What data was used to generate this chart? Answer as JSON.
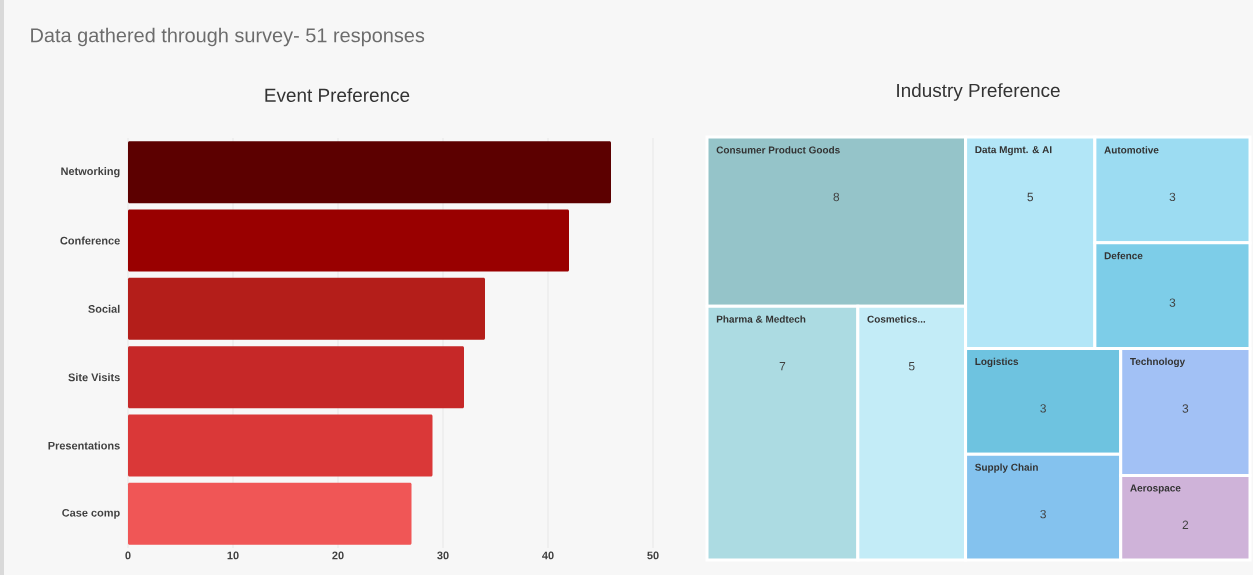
{
  "chart_data": [
    {
      "type": "bar",
      "orientation": "horizontal",
      "title": "Event Preference",
      "annotations": [
        "Data gathered through survey- 51 responses"
      ],
      "categories": [
        "Networking",
        "Conference",
        "Social",
        "Site Visits",
        "Presentations",
        "Case comp"
      ],
      "values": [
        46,
        42,
        34,
        32,
        29,
        27
      ],
      "colors": [
        "#5c0000",
        "#990000",
        "#b41e1a",
        "#c62828",
        "#da3838",
        "#f05656"
      ],
      "xlim": [
        0,
        50
      ],
      "xticks": [
        0,
        10,
        20,
        30,
        40,
        50
      ],
      "grid": "x"
    },
    {
      "type": "other",
      "title": "Industry Preference",
      "data_labels": true,
      "categories": [
        "Consumer Product Goods",
        "Pharma & Medtech",
        "Cosmetics...",
        "Data Mgmt. & AI",
        "Automotive",
        "Defence",
        "Logistics",
        "Supply Chain",
        "Technology",
        "Aerospace"
      ],
      "values": [
        8,
        7,
        5,
        5,
        3,
        3,
        3,
        3,
        3,
        2
      ],
      "colors": [
        "#95c4c9",
        "#acdbe2",
        "#c3ecf7",
        "#b2e6f7",
        "#9cdcf2",
        "#7dcde8",
        "#6ec3e0",
        "#84c2ee",
        "#a2c1f5",
        "#cfb3d9"
      ]
    }
  ]
}
